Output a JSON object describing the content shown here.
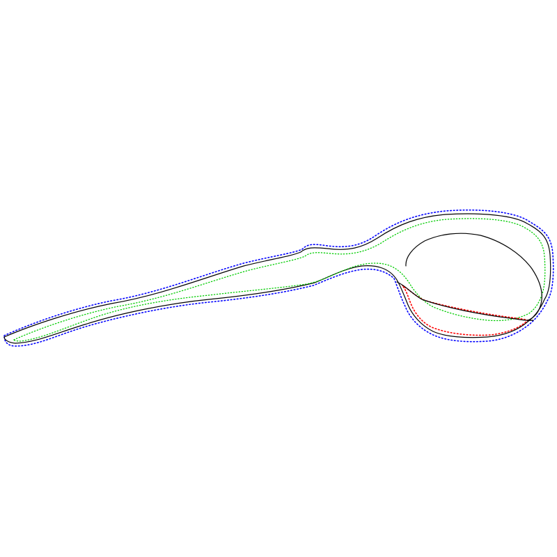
{
  "figure": {
    "subject": "spoon",
    "colors": {
      "outline": "#000000",
      "outer_dotted": "#0000ff",
      "inner_dotted": "#00cc00",
      "bowl_dotted": "#ff0000",
      "background": "#ffffff"
    },
    "contours": [
      {
        "name": "black-outline",
        "style": "solid",
        "color_key": "outline"
      },
      {
        "name": "bowl-inner-curve",
        "style": "solid",
        "color_key": "outline"
      },
      {
        "name": "blue-dotted-outline",
        "style": "dotted",
        "color_key": "outer_dotted"
      },
      {
        "name": "green-dotted-outline",
        "style": "dotted",
        "color_key": "inner_dotted"
      },
      {
        "name": "red-dotted-bowl-region",
        "style": "dotted",
        "color_key": "bowl_dotted"
      }
    ]
  }
}
